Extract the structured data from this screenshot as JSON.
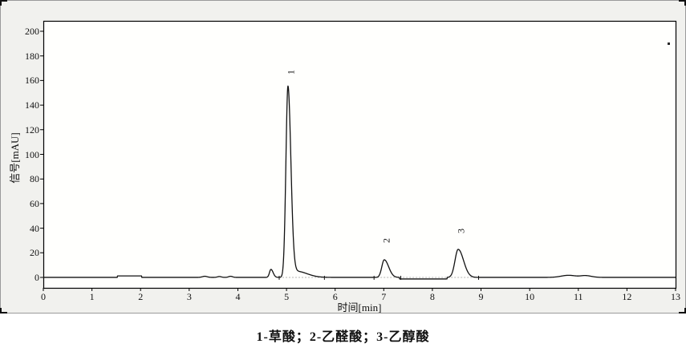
{
  "figure": {
    "caption": "1-草酸；2-乙醛酸；3-乙醇酸"
  },
  "axes": {
    "y_label": "信号[mAU]",
    "x_label": "时间[min]",
    "y_ticks": [
      0,
      20,
      40,
      60,
      80,
      100,
      120,
      140,
      160,
      180,
      200
    ],
    "x_ticks": [
      0,
      1,
      2,
      3,
      4,
      5,
      6,
      7,
      8,
      9,
      10,
      11,
      12,
      13
    ]
  },
  "chart_data": {
    "type": "line",
    "title": "",
    "xlabel": "时间[min]",
    "ylabel": "信号[mAU]",
    "xlim": [
      0,
      13
    ],
    "ylim": [
      -8.5,
      208.5
    ],
    "grid": false,
    "legend": false,
    "peaks": [
      {
        "id": "1",
        "compound": "草酸",
        "retention_time_min": 5.03,
        "height_mAU": 155,
        "label_t": 5.1,
        "label_mAU": 167
      },
      {
        "id": "2",
        "compound": "乙醛酸",
        "retention_time_min": 7.01,
        "height_mAU": 14.3,
        "label_t": 7.06,
        "label_mAU": 30
      },
      {
        "id": "3",
        "compound": "乙醇酸",
        "retention_time_min": 8.53,
        "height_mAU": 22.8,
        "label_t": 8.6,
        "label_mAU": 38
      }
    ],
    "trace_model": {
      "baseline_mAU": 0,
      "features": [
        {
          "type": "step",
          "from": 1.52,
          "to": 2.02,
          "h": 1.2
        },
        {
          "type": "peak",
          "t": 3.32,
          "h": 0.9,
          "s": 0.05
        },
        {
          "type": "peak",
          "t": 3.62,
          "h": 0.7,
          "s": 0.04
        },
        {
          "type": "peak",
          "t": 3.85,
          "h": 0.9,
          "s": 0.04
        },
        {
          "type": "peak",
          "t": 4.68,
          "h": 6.5,
          "sl": 0.03,
          "sr": 0.045
        },
        {
          "type": "peak",
          "t": 5.03,
          "h": 155,
          "sl": 0.042,
          "sr": 0.06
        },
        {
          "type": "peak",
          "t": 5.2,
          "h": 5,
          "sl": 0.08,
          "sr": 0.22
        },
        {
          "type": "peak",
          "t": 7.01,
          "h": 14.3,
          "sl": 0.05,
          "sr": 0.09
        },
        {
          "type": "step",
          "from": 7.32,
          "to": 8.3,
          "h": -1.3
        },
        {
          "type": "peak",
          "t": 8.53,
          "h": 22.8,
          "sl": 0.065,
          "sr": 0.11
        },
        {
          "type": "peak",
          "t": 10.8,
          "h": 1.7,
          "s": 0.15
        },
        {
          "type": "peak",
          "t": 11.15,
          "h": 1.4,
          "sl": 0.1,
          "sr": 0.12
        }
      ],
      "integration_baselines": [
        [
          4.85,
          5.78
        ],
        [
          6.8,
          8.95
        ]
      ],
      "event_ticks": [
        4.85,
        5.78,
        6.8,
        7.35,
        8.95
      ]
    },
    "artifact_dot": {
      "t": 12.85,
      "mAU": 190
    }
  },
  "colors": {
    "trace": "#111111",
    "frame": "#000000",
    "panel_bg": "#f1f1ee",
    "plot_bg": "#fffffd",
    "integration_baseline": "#b4b4b4",
    "text": "#111111"
  }
}
